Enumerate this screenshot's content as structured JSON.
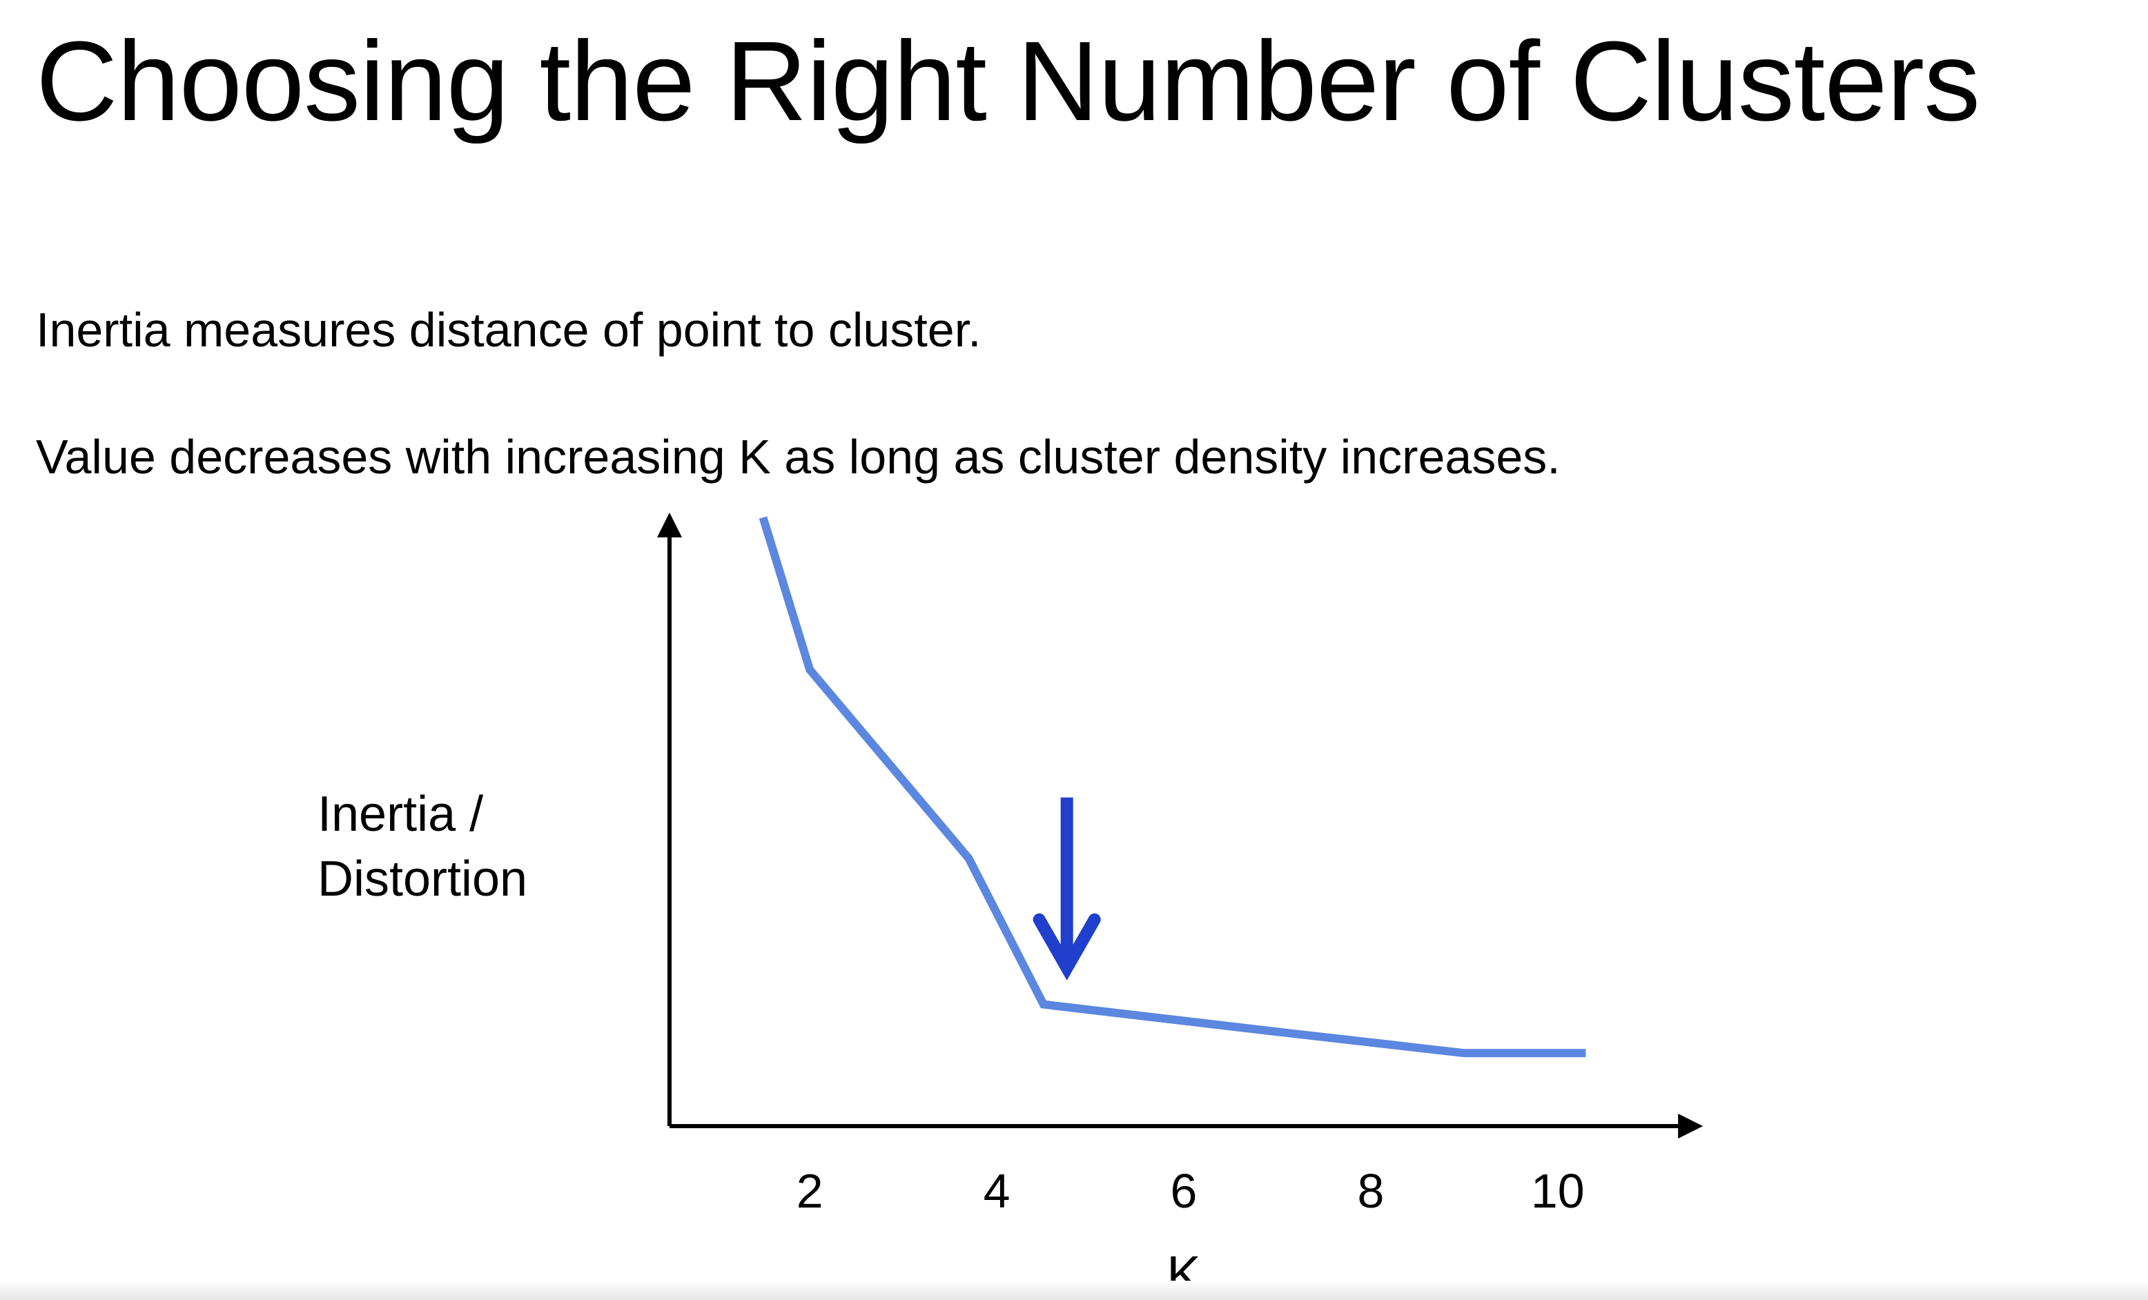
{
  "slide": {
    "title": "Choosing the Right Number of Clusters",
    "line1": "Inertia measures distance of point to cluster.",
    "line2": "Value decreases with increasing K as long as cluster density increases."
  },
  "chart_data": {
    "type": "line",
    "xlabel": "K",
    "ylabel_lines": [
      "Inertia /",
      "Distortion"
    ],
    "x_ticks": [
      2,
      4,
      6,
      8,
      10
    ],
    "xlim": [
      0.5,
      11.5
    ],
    "ylim": [
      0,
      10
    ],
    "y_ticks_shown": false,
    "grid": false,
    "series": [
      {
        "x": [
          1.5,
          2,
          3.7,
          4.5,
          7,
          9,
          10.3
        ],
        "y": [
          10,
          7.5,
          4.4,
          2.0,
          1.55,
          1.2,
          1.2
        ],
        "color": "#5b87e0"
      }
    ],
    "annotation": {
      "type": "arrow-down",
      "x": 4.75,
      "y_from": 5.4,
      "y_to": 2.6,
      "color": "#1f3fcc"
    },
    "axis_color": "#000000"
  }
}
